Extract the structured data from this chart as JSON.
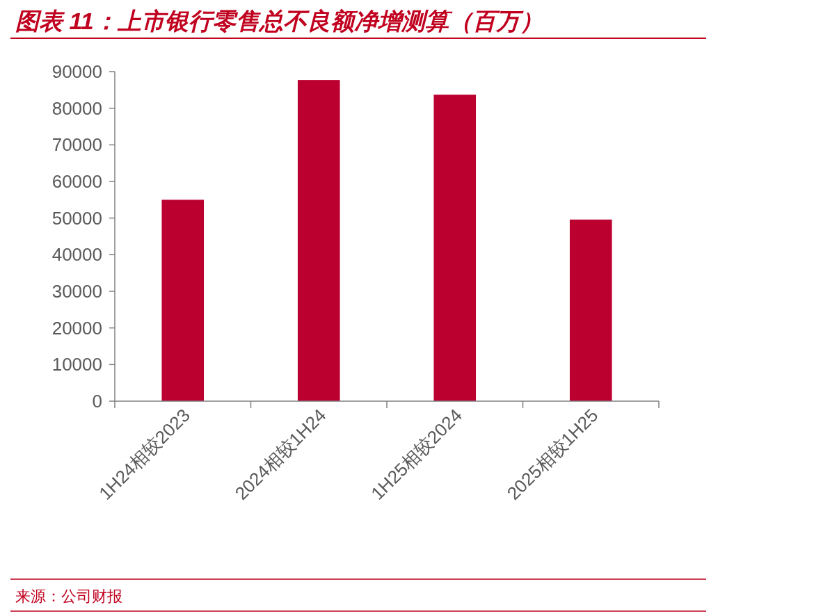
{
  "chart_data": {
    "type": "bar",
    "title": "图表 11：上市银行零售总不良额净增测算（百万）",
    "categories": [
      "1H24相较2023",
      "2024相较1H24",
      "1H25相较2024",
      "2025相较1H25"
    ],
    "values": [
      55000,
      87700,
      83700,
      49600
    ],
    "color": "#bb0030",
    "ylim": [
      0,
      90000
    ],
    "yticks": [
      0,
      10000,
      20000,
      30000,
      40000,
      50000,
      60000,
      70000,
      80000,
      90000
    ],
    "annotations": [
      "来源：公司财报"
    ]
  }
}
